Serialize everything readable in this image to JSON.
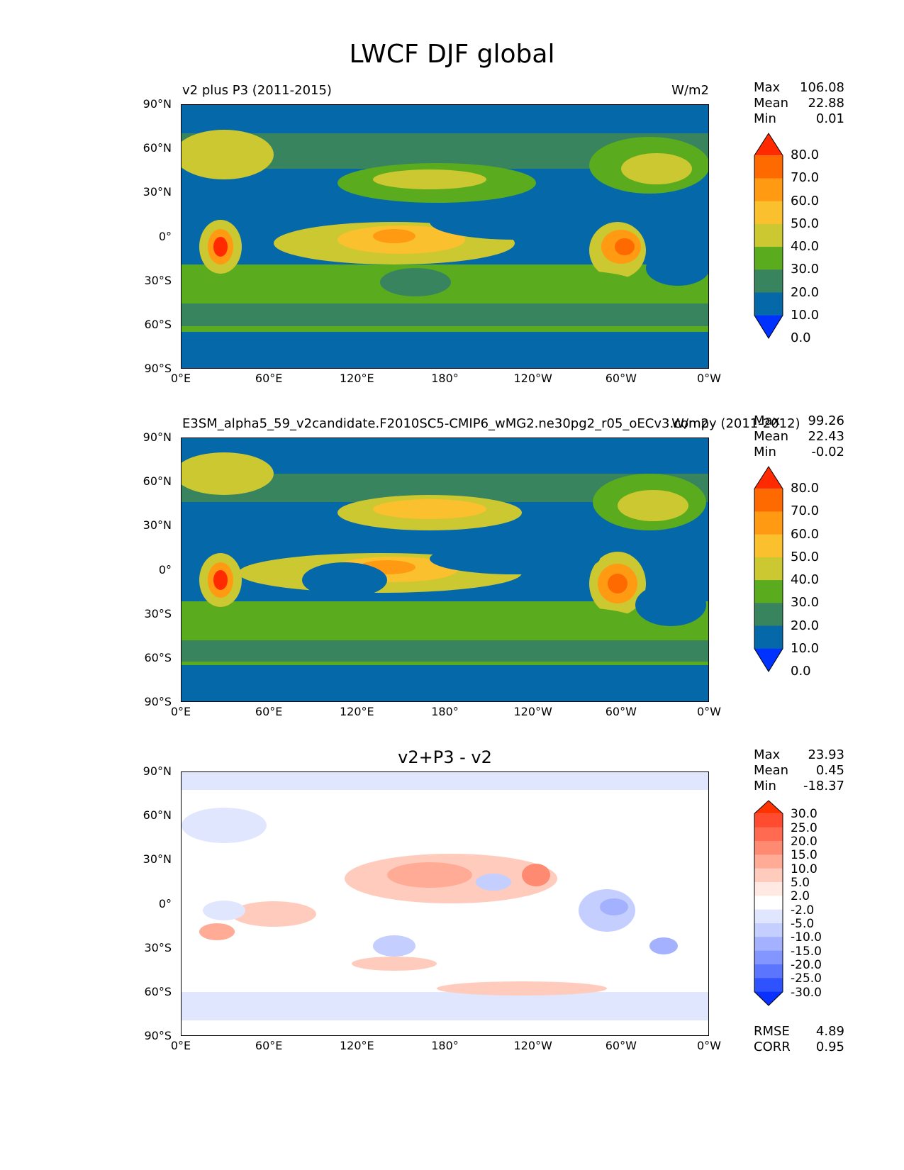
{
  "figure_title": "LWCF DJF global",
  "chart_data": [
    {
      "type": "heatmap",
      "title_left": "v2 plus P3 (2011-2015)",
      "units": "W/m2",
      "projection": "global lat-lon",
      "xlabels": [
        "0°E",
        "60°E",
        "120°E",
        "180°",
        "120°W",
        "60°W",
        "0°W"
      ],
      "ylabels": [
        "90°N",
        "60°N",
        "30°N",
        "0°",
        "30°S",
        "60°S",
        "90°S"
      ],
      "stats": {
        "Max": "106.08",
        "Mean": "22.88",
        "Min": "0.01"
      },
      "colorbar_levels": [
        "80.0",
        "70.0",
        "60.0",
        "50.0",
        "40.0",
        "30.0",
        "20.0",
        "10.0",
        "0.0"
      ],
      "colorbar_colors": [
        "#ff2a00",
        "#ff6a00",
        "#ff9a12",
        "#fbc02d",
        "#cbc831",
        "#5aab1e",
        "#38845e",
        "#0568a8",
        "#0032ff"
      ]
    },
    {
      "type": "heatmap",
      "title_left": "E3SM_alpha5_59_v2candidate.F2010SC5-CMIP6_wMG2.ne30pg2_r05_oECv3.compy (2011-2012)",
      "units": "W/m2",
      "xlabels": [
        "0°E",
        "60°E",
        "120°E",
        "180°",
        "120°W",
        "60°W",
        "0°W"
      ],
      "ylabels": [
        "90°N",
        "60°N",
        "30°N",
        "0°",
        "30°S",
        "60°S",
        "90°S"
      ],
      "stats": {
        "Max": "99.26",
        "Mean": "22.43",
        "Min": "-0.02"
      },
      "colorbar_levels": [
        "80.0",
        "70.0",
        "60.0",
        "50.0",
        "40.0",
        "30.0",
        "20.0",
        "10.0",
        "0.0"
      ],
      "colorbar_colors": [
        "#ff2a00",
        "#ff6a00",
        "#ff9a12",
        "#fbc02d",
        "#cbc831",
        "#5aab1e",
        "#38845e",
        "#0568a8",
        "#0032ff"
      ]
    },
    {
      "type": "heatmap",
      "title_center": "v2+P3 - v2",
      "xlabels": [
        "0°E",
        "60°E",
        "120°E",
        "180°",
        "120°W",
        "60°W",
        "0°W"
      ],
      "ylabels": [
        "90°N",
        "60°N",
        "30°N",
        "0°",
        "30°S",
        "60°S",
        "90°S"
      ],
      "stats": {
        "Max": "23.93",
        "Mean": "0.45",
        "Min": "-18.37"
      },
      "extra_stats": {
        "RMSE": "4.89",
        "CORR": "0.95"
      },
      "colorbar_levels": [
        "30.0",
        "25.0",
        "20.0",
        "15.0",
        "10.0",
        "5.0",
        "2.0",
        "-2.0",
        "-5.0",
        "-10.0",
        "-15.0",
        "-20.0",
        "-25.0",
        "-30.0"
      ],
      "colorbar_colors": [
        "#ff3300",
        "#ff4b30",
        "#ff6a50",
        "#ff8a72",
        "#ffab96",
        "#ffcbbd",
        "#ffe9e2",
        "#ffffff",
        "#e1e6ff",
        "#c4ceff",
        "#a3b1ff",
        "#8396ff",
        "#5c75ff",
        "#2f52ff",
        "#0a30ff"
      ]
    }
  ]
}
